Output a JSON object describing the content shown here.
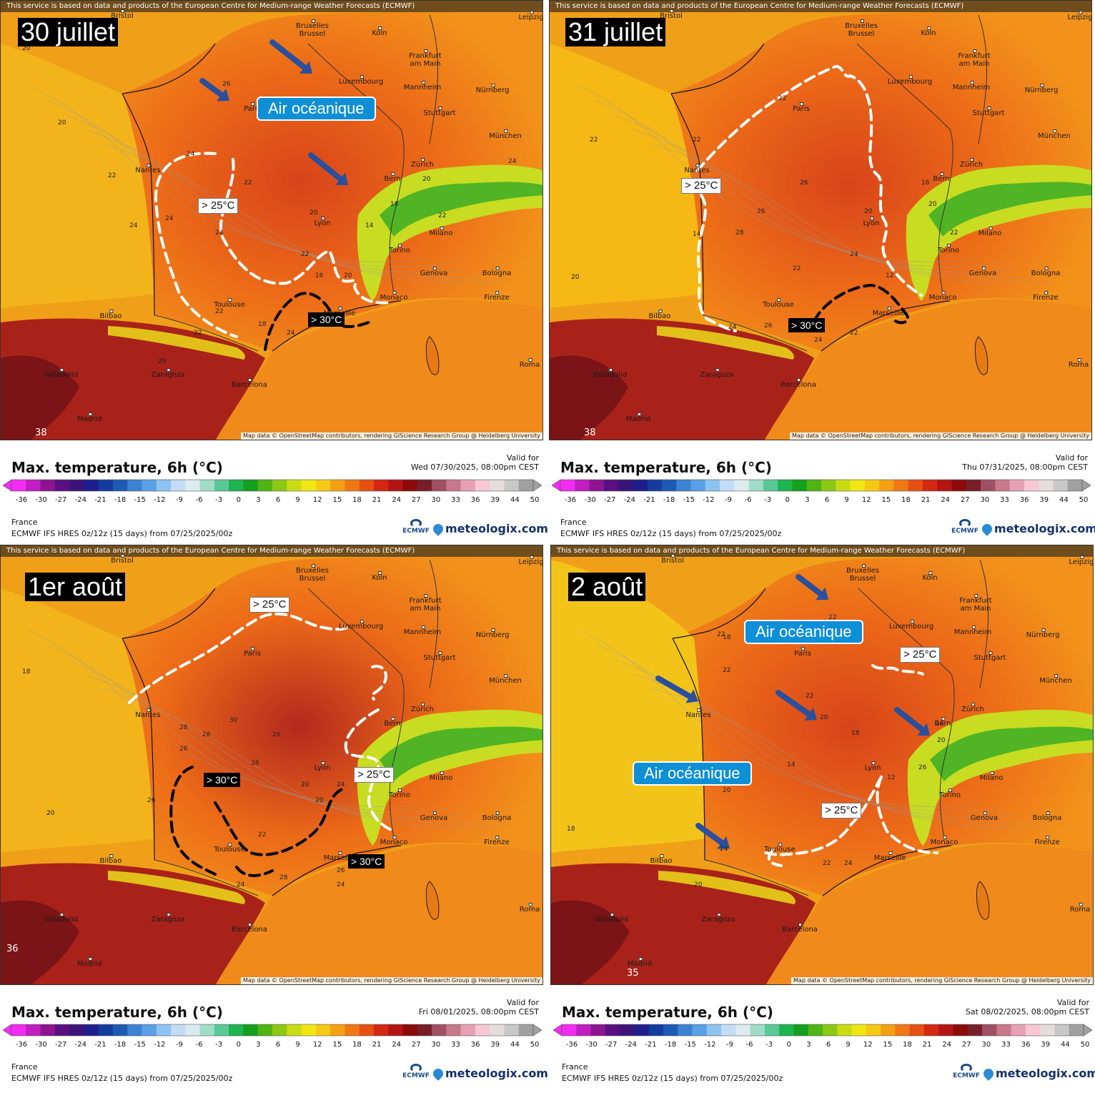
{
  "common": {
    "ecmwf_note": "This service is based on data and products of the European Centre for Medium-range Weather Forecasts (ECMWF)",
    "attribution": "Map data © OpenStreetMap contributors, rendering GIScience Research Group @ Heidelberg University",
    "title": "Max. temperature, 6h (°C)",
    "valid_for": "Valid for",
    "region": "France",
    "model": "ECMWF IFS HRES 0z/12z (15 days) from  07/25/2025/00z",
    "ecmwf_logo": "ECMWF",
    "brand": "meteologix.com",
    "scale_ticks": [
      "-36",
      "-30",
      "-27",
      "-24",
      "-21",
      "-18",
      "-15",
      "-12",
      "-9",
      "-6",
      "-3",
      "0",
      "3",
      "6",
      "9",
      "12",
      "15",
      "18",
      "21",
      "24",
      "27",
      "30",
      "33",
      "36",
      "39",
      "44",
      "50"
    ],
    "scale_colors": [
      "#f22cf2",
      "#c01ec0",
      "#8c1490",
      "#5a0f82",
      "#3c1478",
      "#1e1e8c",
      "#143ca0",
      "#1e5ab4",
      "#3c82d2",
      "#5aa0e6",
      "#8cc3f0",
      "#c3dcf5",
      "#dcebf0",
      "#a0dcc8",
      "#5ac896",
      "#1eb450",
      "#14a01e",
      "#50b414",
      "#8cc814",
      "#c8dc14",
      "#f0e614",
      "#f5c814",
      "#f5a014",
      "#f07814",
      "#e65014",
      "#d22814",
      "#b41414",
      "#8c0a0a",
      "#781e28",
      "#a05064",
      "#c8788c",
      "#e6a0b4",
      "#f5c8d2",
      "#e6dcdc",
      "#c8c8c8",
      "#a0a0a0"
    ],
    "cities": {
      "bruxelles": "Bruxelles\nBrussel",
      "koln": "Köln",
      "frankfurt": "Frankfurt\nam Main",
      "luxembourg": "Luxembourg",
      "mannheim": "Mannheim",
      "nurnberg": "Nürnberg",
      "stuttgart": "Stuttgart",
      "munchen": "München",
      "paris": "Paris",
      "nantes": "Nantes",
      "zurich": "Zürich",
      "bern": "Bern",
      "lyon": "Lyon",
      "milano": "Milano",
      "torino": "Torino",
      "genova": "Genova",
      "bologna": "Bologna",
      "firenze": "Firenze",
      "monaco": "Monaco",
      "toulouse": "Toulouse",
      "marseille": "Marseille",
      "bilbao": "Bilbao",
      "valladolid": "Valladolid",
      "zaragoza": "Zaragoza",
      "barcelona": "Barcelona",
      "madrid": "Madrid",
      "roma": "Roma",
      "leipzig": "Leipzig",
      "bristol": "Bristol"
    }
  },
  "panels": [
    {
      "id": "p1",
      "date_label": "30 juillet",
      "valid_date": "Wed 07/30/2025, 08:00pm CEST",
      "air_labels": [
        "Air océanique"
      ],
      "t25_labels": [
        "> 25°C"
      ],
      "t30_labels": [
        "> 30°C"
      ],
      "corner_value": "38",
      "sample_values": [
        "20",
        "20",
        "22",
        "24",
        "24",
        "24",
        "22",
        "20",
        "22",
        "16",
        "14",
        "18",
        "20",
        "22",
        "20",
        "22",
        "18",
        "24",
        "22",
        "20",
        "24",
        "26",
        "24"
      ]
    },
    {
      "id": "p2",
      "date_label": "31 juillet",
      "valid_date": "Thu 07/31/2025, 08:00pm CEST",
      "air_labels": [],
      "t25_labels": [
        "> 25°C"
      ],
      "t30_labels": [
        "> 30°C"
      ],
      "corner_value": "38",
      "sample_values": [
        "22",
        "22",
        "22",
        "26",
        "26",
        "28",
        "22",
        "24",
        "20",
        "20",
        "22",
        "16",
        "12",
        "14",
        "20",
        "24",
        "26",
        "24",
        "22",
        "24"
      ]
    },
    {
      "id": "p3",
      "date_label": "1er août",
      "valid_date": "Fri 08/01/2025, 08:00pm CEST",
      "air_labels": [],
      "t25_labels": [
        "> 25°C",
        "> 25°C"
      ],
      "t30_labels": [
        "> 30°C",
        "> 30°C"
      ],
      "corner_value": "36",
      "sample_values": [
        "18",
        "20",
        "26",
        "26",
        "28",
        "28",
        "30",
        "28",
        "26",
        "20",
        "20",
        "22",
        "24",
        "28",
        "26",
        "24",
        "24"
      ]
    },
    {
      "id": "p4",
      "date_label": "2 août",
      "valid_date": "Sat 08/02/2025, 08:00pm CEST",
      "air_labels": [
        "Air océanique",
        "Air océanique"
      ],
      "t25_labels": [
        "> 25°C",
        "> 25°C"
      ],
      "t30_labels": [],
      "corner_value": "35",
      "sample_values": [
        "18",
        "18",
        "22",
        "22",
        "20",
        "22",
        "22",
        "20",
        "18",
        "14",
        "12",
        "16",
        "20",
        "26",
        "20",
        "24",
        "22",
        "24"
      ]
    }
  ]
}
